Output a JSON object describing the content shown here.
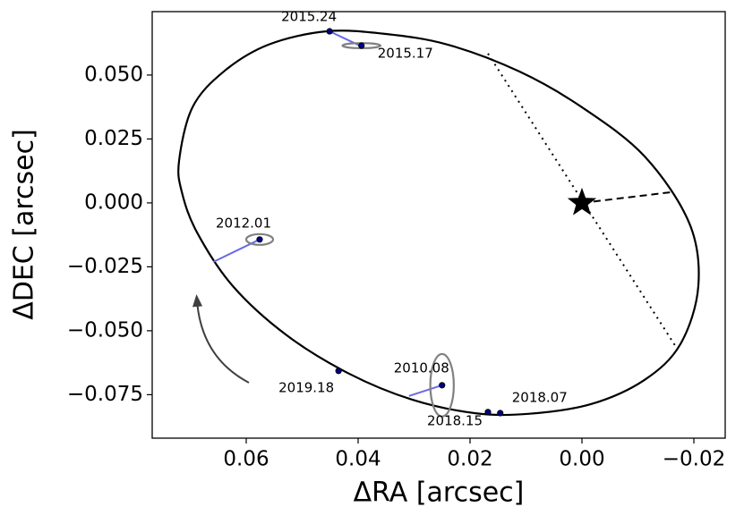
{
  "chart_data": {
    "type": "orbit",
    "xlabel": "ΔRA [arcsec]",
    "ylabel": "ΔDEC [arcsec]",
    "xlim": [
      0.0768,
      -0.0256
    ],
    "ylim": [
      -0.092,
      0.0748
    ],
    "xticks": [
      0.06,
      0.04,
      0.02,
      {
        "value": 0,
        "label": "0.00"
      },
      {
        "value": -0.02,
        "label": "−0.02"
      }
    ],
    "yticks": [
      {
        "value": 0.05,
        "label": "0.050"
      },
      {
        "value": 0.025,
        "label": "0.025"
      },
      {
        "value": 0,
        "label": "0.000"
      },
      {
        "value": -0.025,
        "label": "−0.025"
      },
      {
        "value": -0.05,
        "label": "−0.050"
      },
      {
        "value": -0.075,
        "label": "−0.075"
      }
    ],
    "orbit": {
      "color": "#000000",
      "x": [
        0.072,
        0.0696,
        0.064,
        0.056,
        0.0456,
        0.0352,
        0.024,
        0.0112,
        0.0,
        -0.0112,
        -0.0192,
        -0.0208,
        -0.0176,
        -0.0112,
        -0.0016,
        0.0096,
        0.0192,
        0.0304,
        0.0416,
        0.0528,
        0.0624,
        0.0688,
        0.0715
      ],
      "y": [
        0.0164,
        0.0374,
        0.0514,
        0.0619,
        0.0671,
        0.0661,
        0.0619,
        0.0514,
        0.0374,
        0.0182,
        -0.008,
        -0.0325,
        -0.0552,
        -0.0692,
        -0.0787,
        -0.0825,
        -0.0822,
        -0.0769,
        -0.0668,
        -0.0517,
        -0.0325,
        -0.0115,
        0.0042
      ]
    },
    "star": {
      "x": 0,
      "y": 0,
      "color": "#000000"
    },
    "dotted_line": {
      "x": [
        0.0168,
        -0.0168
      ],
      "y": [
        0.0584,
        -0.0563
      ]
    },
    "dashed_line": {
      "x": [
        0,
        -0.016
      ],
      "y": [
        0,
        0.0042
      ]
    },
    "points": {
      "color": "#000080",
      "residual_color": "#6a6ae8",
      "error_color": "#808080",
      "labels": [
        "2015.24",
        "2015.17",
        "2012.01",
        "2019.18",
        "2010.08",
        "2018.15",
        "2018.07"
      ],
      "x": [
        0.0451,
        0.0394,
        0.0576,
        0.0435,
        0.025,
        0.0168,
        0.0146
      ],
      "y": [
        0.0671,
        0.0615,
        -0.0143,
        -0.0657,
        -0.0713,
        -0.0818,
        -0.0822
      ],
      "x_err": [
        null,
        0.0034,
        0.0024,
        null,
        0.0021,
        null,
        null
      ],
      "y_err": [
        null,
        0.001,
        0.0021,
        null,
        0.0122,
        null,
        null
      ],
      "model_x": [
        0.0397,
        null,
        0.0659,
        null,
        0.0309,
        null,
        null
      ],
      "model_y": [
        0.0615,
        null,
        -0.0231,
        null,
        -0.0755,
        null,
        null
      ]
    }
  }
}
